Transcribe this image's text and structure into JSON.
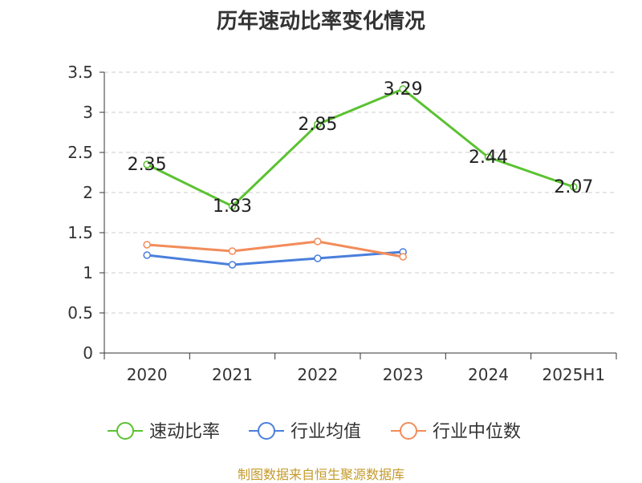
{
  "chart_data": {
    "type": "line",
    "title": "历年速动比率变化情况",
    "categories": [
      "2020",
      "2021",
      "2022",
      "2023",
      "2024",
      "2025H1"
    ],
    "y_ticks": [
      "0",
      "0.5",
      "1",
      "1.5",
      "2",
      "2.5",
      "3",
      "3.5"
    ],
    "ylim": [
      0,
      3.5
    ],
    "grid": true,
    "legend_position": "bottom",
    "series": [
      {
        "name": "速动比率",
        "color": "#5ac230",
        "values": [
          2.35,
          1.83,
          2.85,
          3.29,
          2.44,
          2.07
        ],
        "labels": [
          "2.35",
          "1.83",
          "2.85",
          "3.29",
          "2.44",
          "2.07"
        ],
        "show_labels": true
      },
      {
        "name": "行业均值",
        "color": "#4a7fdc",
        "values": [
          1.22,
          1.1,
          1.18,
          1.26,
          null,
          null
        ],
        "show_labels": false
      },
      {
        "name": "行业中位数",
        "color": "#f28c5a",
        "values": [
          1.35,
          1.27,
          1.39,
          1.2,
          null,
          null
        ],
        "show_labels": false
      }
    ]
  },
  "source": {
    "text": "制图数据来自恒生聚源数据库",
    "color": "#c49a2c"
  }
}
